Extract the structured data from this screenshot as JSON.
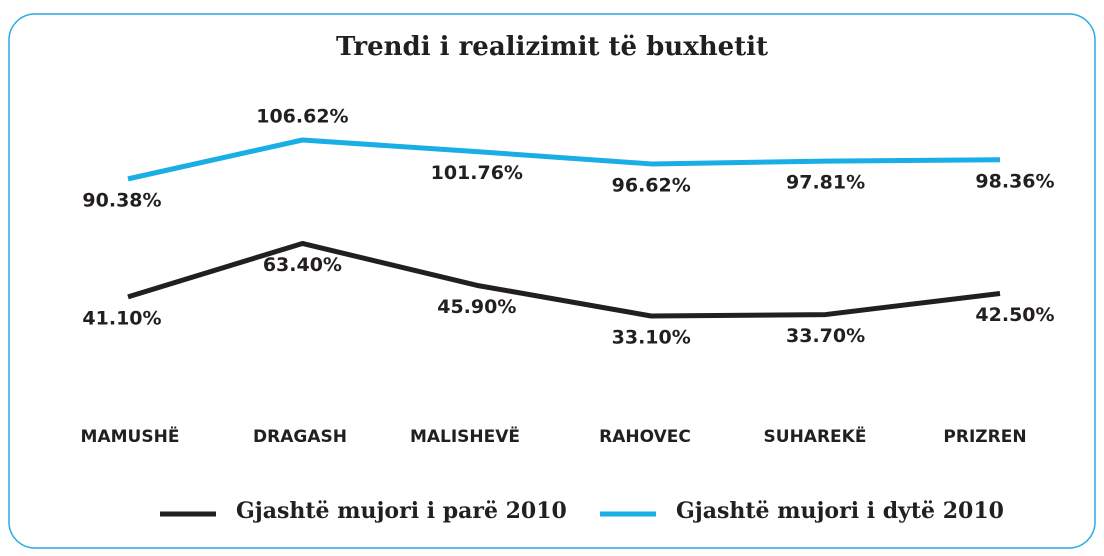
{
  "chart_data": {
    "type": "line",
    "title": "Trendi i realizimit të buxhetit",
    "categories": [
      "MAMUSHË",
      "DRAGASH",
      "MALISHEVË",
      "RAHOVEC",
      "SUHAREKË",
      "PRIZREN"
    ],
    "series": [
      {
        "name": "Gjashtë mujori i parë 2010",
        "color": "#231f20",
        "values": [
          41.1,
          63.4,
          45.9,
          33.1,
          33.7,
          42.5
        ],
        "value_labels": [
          "41.10%",
          "63.40%",
          "45.90%",
          "33.10%",
          "33.70%",
          "42.50%"
        ]
      },
      {
        "name": "Gjashtë mujori i dytë 2010",
        "color": "#1aaee6",
        "values": [
          90.38,
          106.62,
          101.76,
          96.62,
          97.81,
          98.36
        ],
        "value_labels": [
          "90.38%",
          "106.62%",
          "101.76%",
          "96.62%",
          "97.81%",
          "98.36%"
        ]
      }
    ]
  }
}
